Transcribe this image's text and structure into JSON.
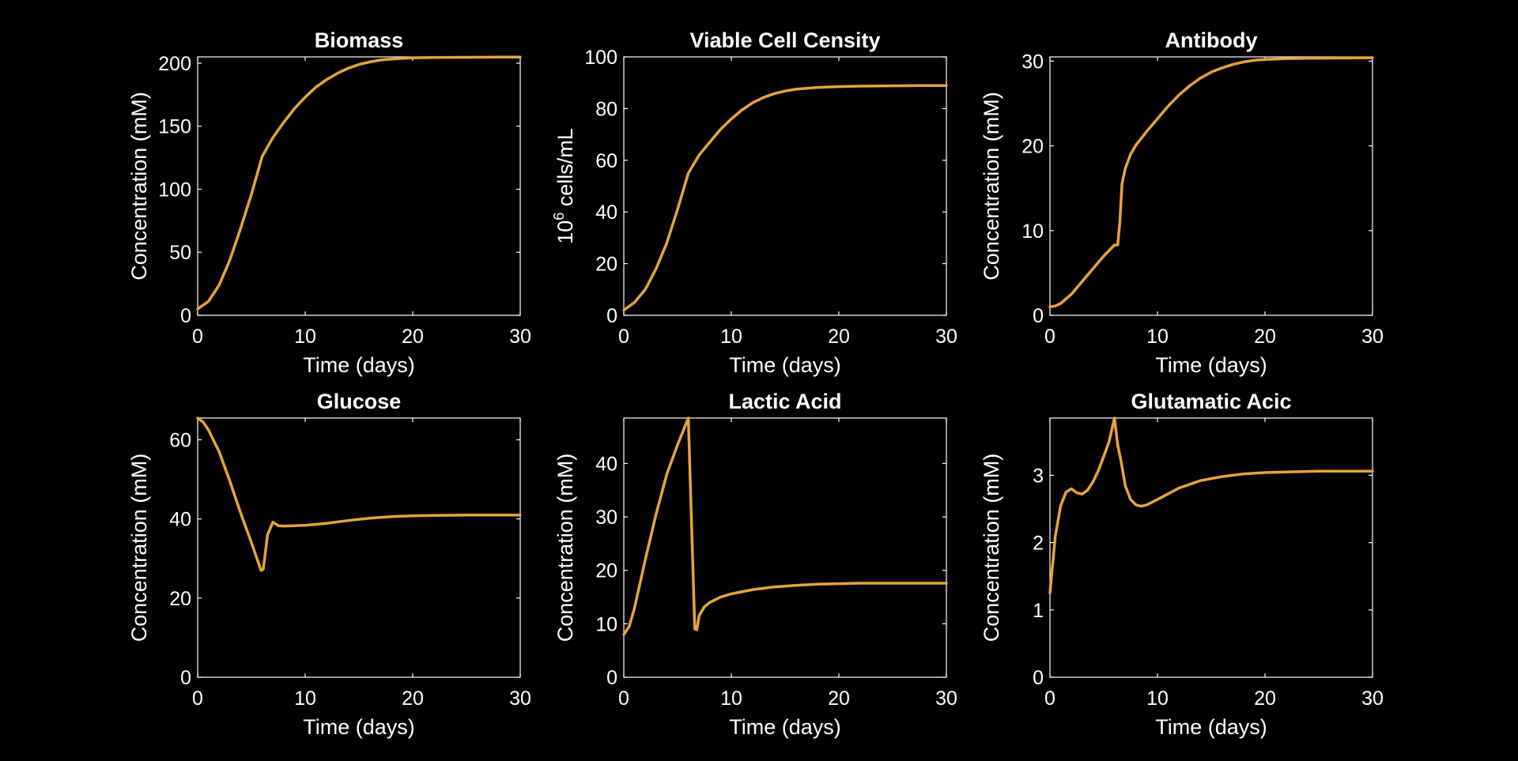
{
  "colors": {
    "background": "#000000",
    "axes": "#ffffff",
    "line": "#e7a33e"
  },
  "chart_data": [
    {
      "type": "line",
      "title": "Biomass",
      "xlabel": "Time (days)",
      "ylabel": "Concentration (mM)",
      "xlim": [
        0,
        30
      ],
      "ylim": [
        0,
        205
      ],
      "xticks": [
        0,
        10,
        20,
        30
      ],
      "yticks": [
        0,
        50,
        100,
        150,
        200
      ],
      "grid": false,
      "x": [
        0,
        1,
        2,
        3,
        4,
        5,
        6,
        7,
        8,
        9,
        10,
        11,
        12,
        13,
        14,
        15,
        16,
        17,
        18,
        19,
        20,
        22,
        25,
        28,
        30
      ],
      "y": [
        5,
        11,
        24,
        44,
        69,
        96,
        126,
        141,
        153,
        164,
        173,
        181,
        187,
        192,
        196,
        199,
        201,
        202.5,
        203.3,
        203.8,
        204.2,
        204.5,
        204.7,
        204.8,
        204.8
      ]
    },
    {
      "type": "line",
      "title": "Viable Cell Censity",
      "xlabel": "Time (days)",
      "ylabel": {
        "base": "10",
        "sup": "6",
        "rest": " cells/mL"
      },
      "xlim": [
        0,
        30
      ],
      "ylim": [
        0,
        100
      ],
      "xticks": [
        0,
        10,
        20,
        30
      ],
      "yticks": [
        0,
        20,
        40,
        60,
        80,
        100
      ],
      "grid": false,
      "x": [
        0,
        1,
        2,
        3,
        4,
        5,
        6,
        7,
        8,
        9,
        10,
        11,
        12,
        13,
        14,
        15,
        16,
        18,
        20,
        22,
        25,
        28,
        30
      ],
      "y": [
        2,
        5,
        10,
        18,
        28,
        41,
        55,
        62,
        67,
        72,
        76,
        79.5,
        82.3,
        84.3,
        85.8,
        86.8,
        87.5,
        88.2,
        88.5,
        88.7,
        88.8,
        88.9,
        88.9
      ]
    },
    {
      "type": "line",
      "title": "Antibody",
      "xlabel": "Time (days)",
      "ylabel": "Concentration (mM)",
      "xlim": [
        0,
        30
      ],
      "ylim": [
        0,
        30.5
      ],
      "xticks": [
        0,
        10,
        20,
        30
      ],
      "yticks": [
        0,
        10,
        20,
        30
      ],
      "grid": false,
      "x": [
        0,
        0.5,
        1,
        2,
        3,
        4,
        5,
        6,
        6.3,
        6.5,
        6.7,
        7,
        7.5,
        8,
        9,
        10,
        11,
        12,
        13,
        14,
        15,
        16,
        17,
        18,
        19,
        20,
        22,
        25,
        30
      ],
      "y": [
        1,
        1.1,
        1.4,
        2.5,
        4,
        5.5,
        7,
        8.3,
        8.3,
        11,
        15.5,
        17.3,
        19,
        20.1,
        21.7,
        23.2,
        24.7,
        26,
        27.1,
        28,
        28.7,
        29.2,
        29.6,
        29.9,
        30.1,
        30.2,
        30.3,
        30.35,
        30.4
      ]
    },
    {
      "type": "line",
      "title": "Glucose",
      "xlabel": "Time (days)",
      "ylabel": "Concentration (mM)",
      "xlim": [
        0,
        30
      ],
      "ylim": [
        0,
        65.5
      ],
      "xticks": [
        0,
        10,
        20,
        30
      ],
      "yticks": [
        0,
        20,
        40,
        60
      ],
      "grid": false,
      "x": [
        0,
        0.5,
        1,
        2,
        3,
        4,
        5,
        5.9,
        6.1,
        6.5,
        7,
        7.5,
        8,
        10,
        12,
        14,
        16,
        18,
        20,
        22,
        25,
        30
      ],
      "y": [
        65.5,
        64.5,
        62.5,
        57,
        49.5,
        41.5,
        34,
        27,
        27.3,
        36,
        39.2,
        38.3,
        38.2,
        38.4,
        38.9,
        39.6,
        40.2,
        40.6,
        40.8,
        40.9,
        41,
        41
      ]
    },
    {
      "type": "line",
      "title": "Lactic Acid",
      "xlabel": "Time (days)",
      "ylabel": "Concentration (mM)",
      "xlim": [
        0,
        30
      ],
      "ylim": [
        0,
        48.5
      ],
      "xticks": [
        0,
        10,
        20,
        30
      ],
      "yticks": [
        0,
        10,
        20,
        30,
        40
      ],
      "grid": false,
      "x": [
        0,
        0.5,
        1,
        2,
        3,
        4,
        5,
        6,
        6.6,
        6.8,
        7,
        7.5,
        8,
        9,
        10,
        12,
        14,
        16,
        18,
        20,
        22,
        25,
        30
      ],
      "y": [
        8,
        9.5,
        13,
        22,
        30.5,
        38,
        43.5,
        48.5,
        9,
        8.9,
        11.5,
        13.2,
        14,
        15,
        15.6,
        16.4,
        16.9,
        17.2,
        17.4,
        17.5,
        17.6,
        17.6,
        17.6
      ]
    },
    {
      "type": "line",
      "title": "Glutamatic Acic",
      "xlabel": "Time (days)",
      "ylabel": "Concentration (mM)",
      "xlim": [
        0,
        30
      ],
      "ylim": [
        0,
        3.85
      ],
      "xticks": [
        0,
        10,
        20,
        30
      ],
      "yticks": [
        0,
        1,
        2,
        3
      ],
      "grid": false,
      "x": [
        0,
        0.5,
        1,
        1.5,
        2,
        2.5,
        3,
        3.5,
        4,
        4.5,
        5,
        5.5,
        6,
        6.3,
        6.6,
        7,
        7.5,
        8,
        8.5,
        9,
        10,
        12,
        14,
        16,
        18,
        20,
        22,
        25,
        30
      ],
      "y": [
        1.25,
        2.1,
        2.55,
        2.75,
        2.8,
        2.74,
        2.72,
        2.78,
        2.9,
        3.07,
        3.28,
        3.5,
        3.85,
        3.45,
        3.22,
        2.85,
        2.64,
        2.56,
        2.54,
        2.56,
        2.64,
        2.81,
        2.92,
        2.98,
        3.02,
        3.04,
        3.05,
        3.06,
        3.06
      ]
    }
  ]
}
